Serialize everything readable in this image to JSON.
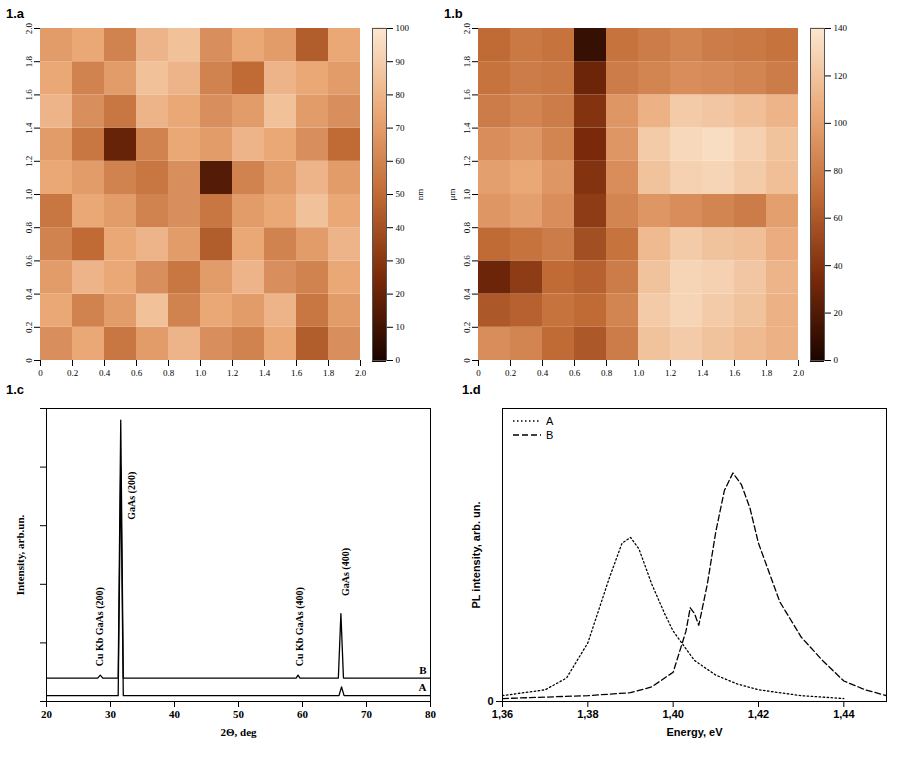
{
  "chart_data": [
    {
      "type": "heatmap",
      "panel": "1.a",
      "xlim": [
        0,
        2
      ],
      "ylim": [
        0,
        2
      ],
      "xticks": [
        0,
        0.2,
        0.4,
        0.6,
        0.8,
        {
          "value": 1,
          "label": "1.0"
        },
        1.2,
        1.4,
        1.6,
        1.8,
        {
          "value": 2,
          "label": "2.0"
        }
      ],
      "yticks": [
        0,
        0.2,
        0.4,
        0.6,
        0.8,
        {
          "value": 1,
          "label": "1.0"
        },
        1.2,
        1.4,
        1.6,
        1.8,
        {
          "value": 2,
          "label": "2.0"
        }
      ],
      "x_edges": [
        0,
        0.2,
        0.4,
        0.6,
        0.8,
        1.0,
        1.2,
        1.4,
        1.6,
        1.8,
        2.0
      ],
      "y_edges": [
        0,
        0.2,
        0.4,
        0.6,
        0.8,
        1.0,
        1.2,
        1.4,
        1.6,
        1.8,
        2.0
      ],
      "z": [
        [
          65,
          75,
          55,
          70,
          80,
          65,
          60,
          75,
          45,
          65
        ],
        [
          75,
          60,
          70,
          85,
          60,
          75,
          70,
          80,
          55,
          70
        ],
        [
          70,
          80,
          75,
          65,
          55,
          70,
          80,
          65,
          60,
          75
        ],
        [
          60,
          50,
          75,
          80,
          70,
          45,
          75,
          60,
          70,
          80
        ],
        [
          55,
          75,
          70,
          60,
          65,
          55,
          70,
          75,
          85,
          75
        ],
        [
          75,
          70,
          60,
          55,
          65,
          15,
          60,
          70,
          80,
          70
        ],
        [
          70,
          55,
          20,
          60,
          75,
          70,
          80,
          75,
          65,
          50
        ],
        [
          80,
          65,
          55,
          80,
          75,
          65,
          70,
          85,
          70,
          65
        ],
        [
          75,
          60,
          70,
          85,
          80,
          60,
          50,
          80,
          75,
          70
        ],
        [
          70,
          75,
          60,
          80,
          85,
          65,
          75,
          70,
          45,
          75
        ]
      ],
      "colorbar": {
        "range": [
          0,
          100
        ],
        "ticks": [
          0,
          10,
          20,
          30,
          40,
          50,
          60,
          70,
          80,
          90,
          100
        ],
        "label": "nm",
        "colors": [
          "#1a0500",
          "#7a2a0a",
          "#c06a35",
          "#eaa877",
          "#fbe6cf"
        ]
      }
    },
    {
      "type": "heatmap",
      "panel": "1.b",
      "ylabel": "μm",
      "xlim": [
        0,
        2
      ],
      "ylim": [
        0,
        2
      ],
      "xticks": [
        0,
        0.2,
        0.4,
        0.6,
        0.8,
        {
          "value": 1,
          "label": "1.0"
        },
        1.2,
        1.4,
        1.6,
        1.8,
        {
          "value": 2,
          "label": "2.0"
        }
      ],
      "yticks": [
        0,
        0.2,
        0.4,
        0.6,
        0.8,
        {
          "value": 1,
          "label": "1.0"
        },
        1.2,
        1.4,
        1.6,
        1.8,
        {
          "value": 2,
          "label": "2.0"
        }
      ],
      "x_edges": [
        0,
        0.2,
        0.4,
        0.6,
        0.8,
        1.0,
        1.2,
        1.4,
        1.6,
        1.8,
        2.0
      ],
      "y_edges": [
        0,
        0.2,
        0.4,
        0.6,
        0.8,
        1.0,
        1.2,
        1.4,
        1.6,
        1.8,
        2.0
      ],
      "z": [
        [
          90,
          85,
          70,
          60,
          80,
          120,
          125,
          120,
          115,
          110
        ],
        [
          60,
          65,
          75,
          70,
          85,
          125,
          130,
          125,
          120,
          110
        ],
        [
          30,
          45,
          70,
          65,
          80,
          120,
          130,
          128,
          122,
          112
        ],
        [
          70,
          75,
          80,
          55,
          75,
          115,
          125,
          120,
          118,
          108
        ],
        [
          95,
          100,
          90,
          45,
          85,
          95,
          90,
          85,
          80,
          100
        ],
        [
          100,
          105,
          95,
          40,
          90,
          120,
          128,
          130,
          125,
          118
        ],
        [
          90,
          95,
          85,
          35,
          95,
          125,
          132,
          135,
          128,
          120
        ],
        [
          80,
          85,
          80,
          40,
          95,
          110,
          125,
          122,
          118,
          112
        ],
        [
          75,
          80,
          78,
          30,
          80,
          85,
          90,
          88,
          85,
          80
        ],
        [
          70,
          78,
          75,
          10,
          75,
          80,
          85,
          80,
          78,
          75
        ]
      ],
      "colorbar": {
        "range": [
          0,
          140
        ],
        "ticks": [
          0,
          20,
          40,
          60,
          80,
          100,
          120,
          140
        ],
        "colors": [
          "#1a0500",
          "#7a2a0a",
          "#c06a35",
          "#eaa877",
          "#fbe6cf"
        ]
      }
    },
    {
      "type": "line",
      "panel": "1.c",
      "xlabel": "2Θ, deg",
      "ylabel": "Intensity, arb.un.",
      "xlim": [
        20,
        80
      ],
      "ylim": [
        0,
        100
      ],
      "xticks": [
        20,
        30,
        40,
        50,
        60,
        70,
        80
      ],
      "yticks": [
        0,
        20,
        40,
        60,
        80,
        100
      ],
      "tick_labels": "x",
      "series": [
        {
          "name": "A",
          "color": "#000000",
          "line_style": "solid",
          "x": [
            20,
            31.2,
            31.6,
            32,
            65.7,
            66.1,
            66.5,
            80
          ],
          "values": [
            2,
            2,
            80,
            2,
            2,
            5,
            2,
            2
          ]
        },
        {
          "name": "B",
          "color": "#000000",
          "line_style": "solid",
          "x": [
            20,
            28,
            28.4,
            28.8,
            31.2,
            31.6,
            32,
            59,
            59.3,
            59.6,
            65.6,
            66,
            66.4,
            80
          ],
          "values": [
            8,
            8,
            9,
            8,
            8,
            96,
            8,
            8,
            9,
            8,
            8,
            30,
            8,
            8
          ]
        }
      ],
      "annotations": [
        {
          "text": "Cu Kb GaAs (200)",
          "x": 28.3,
          "y": 12
        },
        {
          "text": "GaAs (200)",
          "x": 33.3,
          "y": 62
        },
        {
          "text": "Cu Kb GaAs (400)",
          "x": 59.5,
          "y": 12
        },
        {
          "text": "GaAs (400)",
          "x": 66.8,
          "y": 36
        }
      ]
    },
    {
      "type": "line",
      "panel": "1.d",
      "xlabel": "Energy, eV",
      "ylabel": "PL intensity, arb. un.",
      "xlim": [
        1.36,
        1.45
      ],
      "ylim": [
        0,
        100
      ],
      "xticks": [
        {
          "value": 1.36,
          "label": "1,36"
        },
        {
          "value": 1.38,
          "label": "1,38"
        },
        {
          "value": 1.4,
          "label": "1,40"
        },
        {
          "value": 1.42,
          "label": "1,42"
        },
        {
          "value": 1.44,
          "label": "1,44"
        }
      ],
      "yticks": [
        0
      ],
      "legend": "top-left",
      "series": [
        {
          "name": "A",
          "color": "#000000",
          "line_style": "dotted",
          "x": [
            1.36,
            1.37,
            1.375,
            1.38,
            1.385,
            1.388,
            1.39,
            1.392,
            1.395,
            1.398,
            1.4,
            1.405,
            1.41,
            1.415,
            1.42,
            1.43,
            1.44
          ],
          "values": [
            2,
            4,
            8,
            20,
            42,
            54,
            56,
            52,
            40,
            30,
            24,
            14,
            9,
            6,
            4,
            2,
            1
          ]
        },
        {
          "name": "B",
          "color": "#000000",
          "line_style": "dashed",
          "x": [
            1.36,
            1.38,
            1.39,
            1.395,
            1.4,
            1.403,
            1.404,
            1.405,
            1.406,
            1.408,
            1.41,
            1.412,
            1.414,
            1.416,
            1.418,
            1.42,
            1.425,
            1.43,
            1.435,
            1.44,
            1.445,
            1.45
          ],
          "values": [
            1,
            2,
            3,
            5,
            10,
            24,
            32,
            30,
            26,
            40,
            58,
            72,
            78,
            74,
            66,
            54,
            34,
            22,
            14,
            7,
            4,
            2
          ]
        }
      ]
    }
  ]
}
